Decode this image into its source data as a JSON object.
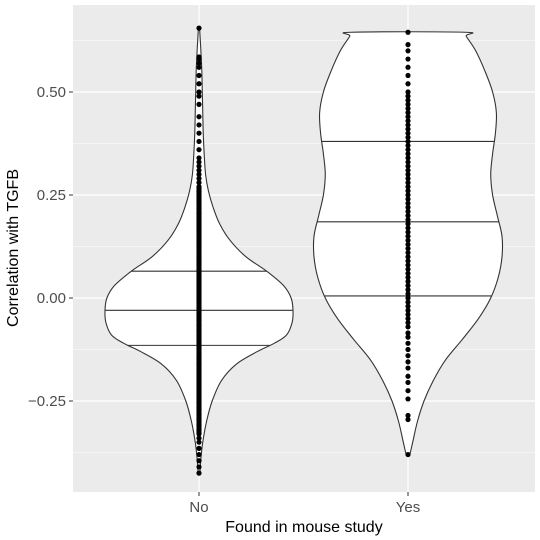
{
  "chart_data": {
    "type": "violin",
    "title": "",
    "xlabel": "Found in mouse study",
    "ylabel": "Correlation with TGFB",
    "categories": [
      "No",
      "Yes"
    ],
    "ylim": [
      -0.4,
      0.66
    ],
    "y_ticks": [
      -0.25,
      0.0,
      0.25,
      0.5
    ],
    "y_tick_labels": [
      "−0.25",
      "0.00",
      "0.25",
      "0.50"
    ],
    "grid": true,
    "legend": "none",
    "colors": {
      "panel_background": "#ebebeb",
      "grid_major": "#ffffff",
      "violin_fill": "#ffffff",
      "violin_outline": "#333333",
      "points": "#000000"
    },
    "series": [
      {
        "category": "No",
        "quantiles": [
          -0.115,
          -0.03,
          0.065
        ],
        "density_profile": [
          [
            -0.425,
            0.01
          ],
          [
            -0.39,
            0.02
          ],
          [
            -0.35,
            0.04
          ],
          [
            -0.3,
            0.08
          ],
          [
            -0.25,
            0.14
          ],
          [
            -0.2,
            0.24
          ],
          [
            -0.16,
            0.4
          ],
          [
            -0.13,
            0.62
          ],
          [
            -0.11,
            0.8
          ],
          [
            -0.09,
            0.93
          ],
          [
            -0.06,
            0.99
          ],
          [
            -0.03,
            1.0
          ],
          [
            0.0,
            0.98
          ],
          [
            0.03,
            0.9
          ],
          [
            0.065,
            0.72
          ],
          [
            0.1,
            0.5
          ],
          [
            0.14,
            0.33
          ],
          [
            0.18,
            0.22
          ],
          [
            0.22,
            0.15
          ],
          [
            0.26,
            0.1
          ],
          [
            0.3,
            0.07
          ],
          [
            0.35,
            0.055
          ],
          [
            0.4,
            0.045
          ],
          [
            0.45,
            0.04
          ],
          [
            0.5,
            0.035
          ],
          [
            0.55,
            0.03
          ],
          [
            0.6,
            0.02
          ],
          [
            0.64,
            0.01
          ],
          [
            0.655,
            0.005
          ]
        ],
        "points": {
          "dense_range": [
            -0.33,
            0.27
          ],
          "extra": [
            -0.425,
            -0.41,
            -0.395,
            -0.38,
            -0.365,
            -0.35,
            -0.34,
            0.28,
            0.29,
            0.3,
            0.31,
            0.32,
            0.33,
            0.34,
            0.36,
            0.38,
            0.4,
            0.42,
            0.44,
            0.47,
            0.49,
            0.5,
            0.52,
            0.54,
            0.56,
            0.57,
            0.58,
            0.585,
            0.655
          ]
        }
      },
      {
        "category": "Yes",
        "quantiles": [
          0.005,
          0.185,
          0.38
        ],
        "density_profile": [
          [
            -0.38,
            0.02
          ],
          [
            -0.35,
            0.05
          ],
          [
            -0.3,
            0.1
          ],
          [
            -0.25,
            0.17
          ],
          [
            -0.2,
            0.27
          ],
          [
            -0.15,
            0.4
          ],
          [
            -0.1,
            0.58
          ],
          [
            -0.05,
            0.75
          ],
          [
            0.0,
            0.88
          ],
          [
            0.05,
            0.96
          ],
          [
            0.1,
            1.0
          ],
          [
            0.15,
            1.0
          ],
          [
            0.2,
            0.95
          ],
          [
            0.25,
            0.9
          ],
          [
            0.3,
            0.88
          ],
          [
            0.35,
            0.9
          ],
          [
            0.4,
            0.93
          ],
          [
            0.45,
            0.94
          ],
          [
            0.5,
            0.9
          ],
          [
            0.55,
            0.82
          ],
          [
            0.6,
            0.72
          ],
          [
            0.635,
            0.62
          ],
          [
            0.645,
            0.6
          ]
        ],
        "points": {
          "values": [
            -0.38,
            -0.295,
            -0.285,
            -0.245,
            -0.225,
            -0.205,
            -0.19,
            -0.17,
            -0.155,
            -0.14,
            -0.125,
            -0.11,
            -0.095,
            -0.085,
            -0.07,
            -0.06,
            -0.05,
            -0.04,
            -0.03,
            -0.02,
            -0.01,
            0.0,
            0.01,
            0.02,
            0.03,
            0.04,
            0.05,
            0.06,
            0.07,
            0.08,
            0.09,
            0.1,
            0.11,
            0.12,
            0.13,
            0.14,
            0.15,
            0.16,
            0.17,
            0.18,
            0.19,
            0.2,
            0.21,
            0.22,
            0.23,
            0.24,
            0.25,
            0.26,
            0.27,
            0.28,
            0.29,
            0.3,
            0.31,
            0.32,
            0.33,
            0.34,
            0.35,
            0.36,
            0.37,
            0.38,
            0.39,
            0.4,
            0.41,
            0.42,
            0.43,
            0.44,
            0.45,
            0.46,
            0.47,
            0.48,
            0.49,
            0.5,
            0.52,
            0.54,
            0.56,
            0.58,
            0.6,
            0.615,
            0.645
          ]
        }
      }
    ]
  }
}
